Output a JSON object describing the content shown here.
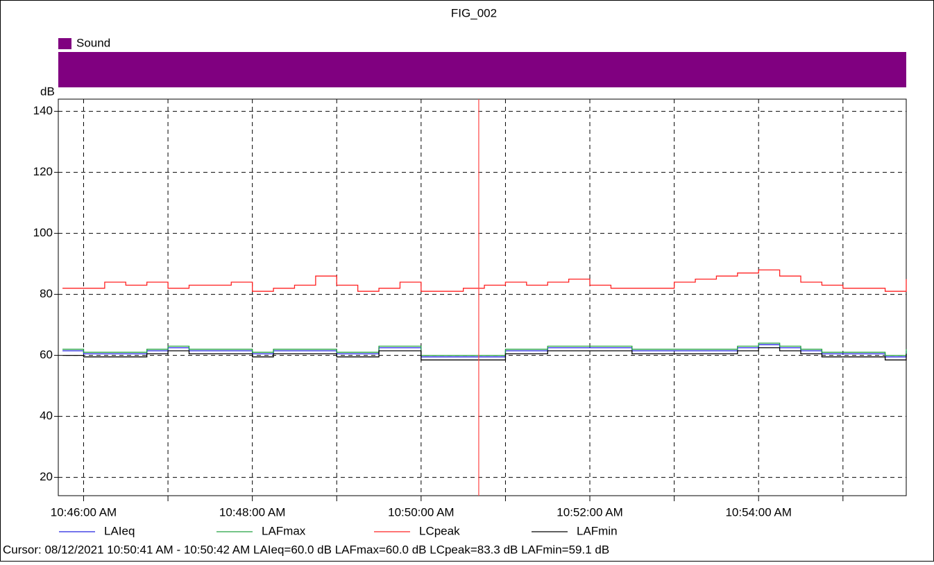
{
  "chart_data": {
    "type": "line",
    "title": "FIG_002",
    "band": {
      "name": "Sound",
      "color": "#800080"
    },
    "ylabel": "dB",
    "x": [
      "10:45:45 AM",
      "10:46:00 AM",
      "10:46:15 AM",
      "10:46:30 AM",
      "10:46:45 AM",
      "10:47:00 AM",
      "10:47:15 AM",
      "10:47:30 AM",
      "10:47:45 AM",
      "10:48:00 AM",
      "10:48:15 AM",
      "10:48:30 AM",
      "10:48:45 AM",
      "10:49:00 AM",
      "10:49:15 AM",
      "10:49:30 AM",
      "10:49:45 AM",
      "10:50:00 AM",
      "10:50:15 AM",
      "10:50:30 AM",
      "10:50:45 AM",
      "10:51:00 AM",
      "10:51:15 AM",
      "10:51:30 AM",
      "10:51:45 AM",
      "10:52:00 AM",
      "10:52:15 AM",
      "10:52:30 AM",
      "10:52:45 AM",
      "10:53:00 AM",
      "10:53:15 AM",
      "10:53:30 AM",
      "10:53:45 AM",
      "10:54:00 AM",
      "10:54:15 AM",
      "10:54:30 AM",
      "10:54:45 AM",
      "10:55:00 AM",
      "10:55:15 AM",
      "10:55:30 AM",
      "10:55:45 AM"
    ],
    "series": [
      {
        "name": "LAIeq",
        "color": "#2020e0",
        "values": [
          61.5,
          60.5,
          60.5,
          60.5,
          61.5,
          62.5,
          61.5,
          61.5,
          61.5,
          60.5,
          61.5,
          61.5,
          61.5,
          60.5,
          60.5,
          62.5,
          62.5,
          59.5,
          59.5,
          59.5,
          59.5,
          61.5,
          61.5,
          62.5,
          62.5,
          62.5,
          62.5,
          61.5,
          61.5,
          61.5,
          61.5,
          61.5,
          62.5,
          63.5,
          62.5,
          61.5,
          60.5,
          60.5,
          60.5,
          59.5,
          61.5
        ]
      },
      {
        "name": "LAFmax",
        "color": "#20a040",
        "values": [
          62,
          61,
          61,
          61,
          62,
          63,
          62,
          62,
          62,
          61,
          62,
          62,
          62,
          61,
          61,
          63,
          63,
          60,
          60,
          60,
          60,
          62,
          62,
          63,
          63,
          63,
          63,
          62,
          62,
          62,
          62,
          62,
          63,
          64,
          63,
          62,
          61,
          61,
          61,
          60,
          62
        ]
      },
      {
        "name": "LCpeak",
        "color": "#ff2020",
        "values": [
          82,
          82,
          84,
          83,
          84,
          82,
          83,
          83,
          84,
          81,
          82,
          83,
          86,
          83,
          81,
          82,
          84,
          81,
          81,
          82,
          83,
          84,
          83,
          84,
          85,
          83,
          82,
          82,
          82,
          84,
          85,
          86,
          87,
          88,
          86,
          84,
          83,
          82,
          82,
          81,
          85
        ]
      },
      {
        "name": "LAFmin",
        "color": "#000000",
        "values": [
          60,
          59.5,
          59.5,
          59.5,
          60.5,
          61.5,
          60.5,
          60.5,
          60.5,
          59.5,
          60.5,
          60.5,
          60.5,
          59.5,
          59.5,
          61.5,
          61.5,
          58.5,
          58.5,
          58.5,
          58.5,
          60.5,
          60.5,
          61.5,
          61.5,
          61.5,
          61.5,
          60.5,
          60.5,
          60.5,
          60.5,
          60.5,
          61.5,
          62.5,
          61.5,
          60.5,
          59.5,
          59.5,
          59.5,
          58.5,
          60.5
        ]
      }
    ],
    "xlim": [
      "10:45:42 AM",
      "10:55:45 AM"
    ],
    "xticks": [
      "10:46:00 AM",
      {
        "value": "10:47:00 AM",
        "label": null
      },
      "10:48:00 AM",
      {
        "value": "10:49:00 AM",
        "label": null
      },
      "10:50:00 AM",
      {
        "value": "10:51:00 AM",
        "label": null
      },
      "10:52:00 AM",
      {
        "value": "10:53:00 AM",
        "label": null
      },
      "10:54:00 AM",
      {
        "value": "10:55:00 AM",
        "label": null
      }
    ],
    "ylim": [
      14,
      144
    ],
    "yticks": [
      20,
      40,
      60,
      80,
      100,
      120,
      140
    ],
    "grid": true,
    "cursor": {
      "x": "10:50:41 AM",
      "color": "#ff5050",
      "text": "Cursor: 08/12/2021 10:50:41 AM - 10:50:42 AM  LAIeq=60.0 dB  LAFmax=60.0 dB  LCpeak=83.3 dB  LAFmin=59.1 dB"
    }
  }
}
